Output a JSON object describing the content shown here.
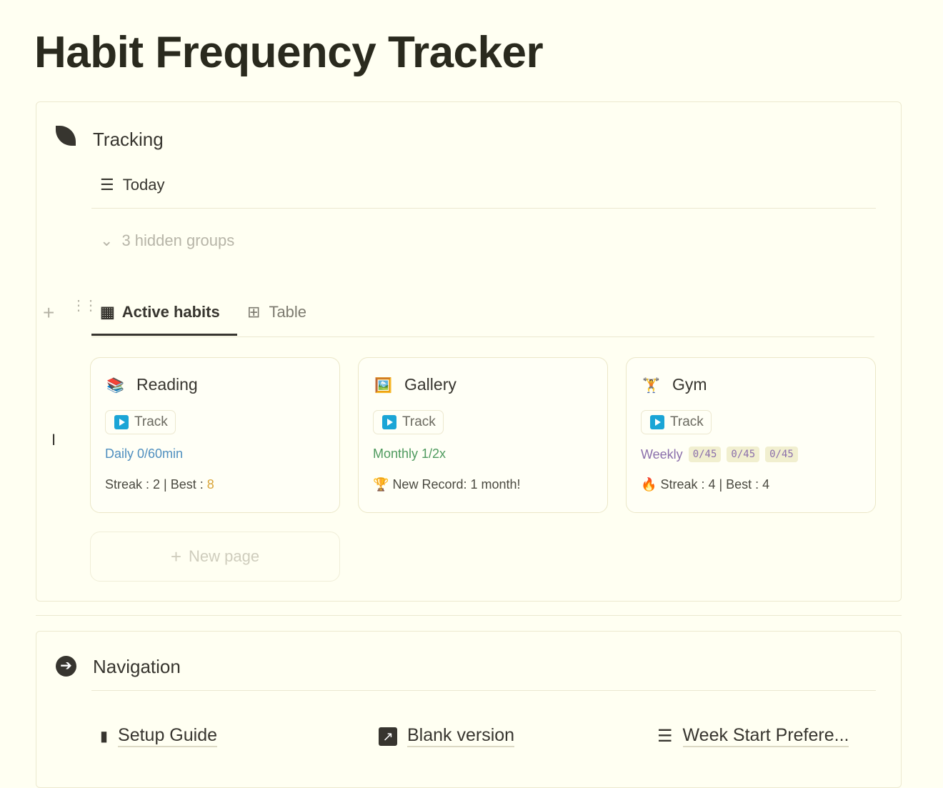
{
  "page": {
    "title": "Habit Frequency Tracker"
  },
  "tracking": {
    "title": "Tracking",
    "icon": "leaf-icon",
    "today_label": "Today",
    "hidden_groups": "3 hidden groups",
    "tabs": [
      {
        "label": "Active habits",
        "icon": "gallery-icon",
        "active": true
      },
      {
        "label": "Table",
        "icon": "table-icon",
        "active": false
      }
    ],
    "cards": [
      {
        "name": "Reading",
        "emoji": "📚",
        "track": "Track",
        "freq": "Daily 0/60min",
        "freq_color": "#4f8fbf",
        "streak": "Streak : 2 | Best : ",
        "best": "8"
      },
      {
        "name": "Gallery",
        "emoji": "🖼️",
        "track": "Track",
        "freq": "Monthly 1/2x",
        "freq_color": "#4e9a5e",
        "record_icon": "🏆",
        "streak": "New Record: 1 month!"
      },
      {
        "name": "Gym",
        "emoji": "🏋️",
        "track": "Track",
        "freq": "Weekly",
        "freq_color": "#8b6fab",
        "chips": [
          "0/45",
          "0/45",
          "0/45"
        ],
        "streak_icon": "🔥",
        "streak": "Streak : 4 | Best : 4"
      }
    ],
    "new_page": "New page"
  },
  "navigation": {
    "title": "Navigation",
    "items": [
      {
        "label": "Setup Guide",
        "icon": "book-icon"
      },
      {
        "label": "Blank version",
        "icon": "arrow-link-icon"
      },
      {
        "label": "Week Start Prefere...",
        "icon": "sliders-icon"
      }
    ]
  }
}
